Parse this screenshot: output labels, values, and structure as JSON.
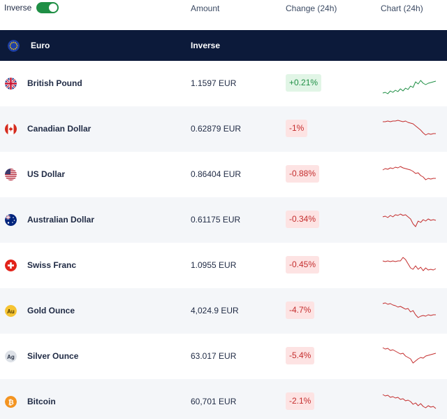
{
  "topbar": {
    "inverse_label": "Inverse",
    "toggle_on": true,
    "col_amount": "Amount",
    "col_change": "Change (24h)",
    "col_chart": "Chart (24h)"
  },
  "base": {
    "name": "Euro",
    "inverse_label": "Inverse",
    "icon": "eu-flag-icon"
  },
  "colors": {
    "header_bg": "#0c1a3a",
    "toggle": "#1f8f45",
    "positive": "#1f8f45",
    "negative": "#c42d2d"
  },
  "rows": [
    {
      "name": "British Pound",
      "amount": "1.1597 EUR",
      "change": "+0.21%",
      "trend": "up",
      "icon": "uk-flag-icon",
      "spark": [
        30,
        29,
        31,
        27,
        29,
        26,
        28,
        24,
        27,
        23,
        25,
        20,
        22,
        14,
        17,
        12,
        16,
        18,
        16,
        15,
        14,
        13
      ]
    },
    {
      "name": "Canadian Dollar",
      "amount": "0.62879 EUR",
      "change": "-1%",
      "trend": "down",
      "icon": "canada-flag-icon",
      "spark": [
        6,
        6,
        5,
        6,
        5,
        5,
        4,
        5,
        6,
        5,
        7,
        8,
        9,
        12,
        15,
        18,
        22,
        25,
        23,
        24,
        23,
        23
      ]
    },
    {
      "name": "US Dollar",
      "amount": "0.86404 EUR",
      "change": "-0.88%",
      "trend": "down",
      "icon": "us-flag-icon",
      "spark": [
        10,
        8,
        9,
        7,
        8,
        6,
        7,
        5,
        7,
        8,
        9,
        10,
        12,
        15,
        14,
        18,
        20,
        24,
        22,
        23,
        22,
        22
      ]
    },
    {
      "name": "Australian Dollar",
      "amount": "0.61175 EUR",
      "change": "-0.34%",
      "trend": "down",
      "icon": "australia-flag-icon",
      "spark": [
        12,
        11,
        13,
        10,
        12,
        9,
        10,
        8,
        10,
        9,
        12,
        15,
        22,
        26,
        18,
        20,
        16,
        18,
        15,
        17,
        16,
        17
      ]
    },
    {
      "name": "Swiss Franc",
      "amount": "1.0955 EUR",
      "change": "-0.45%",
      "trend": "down",
      "icon": "swiss-flag-icon",
      "spark": [
        10,
        11,
        10,
        11,
        10,
        11,
        10,
        10,
        5,
        8,
        14,
        20,
        22,
        17,
        22,
        19,
        24,
        20,
        23,
        22,
        23,
        21
      ]
    },
    {
      "name": "Gold Ounce",
      "amount": "4,024.9 EUR",
      "change": "-4.7%",
      "trend": "down",
      "icon": "gold-au-icon",
      "spark": [
        6,
        5,
        7,
        6,
        8,
        9,
        11,
        10,
        12,
        14,
        13,
        18,
        16,
        22,
        26,
        24,
        23,
        24,
        22,
        23,
        22,
        22
      ]
    },
    {
      "name": "Silver Ounce",
      "amount": "63.017 EUR",
      "change": "-5.4%",
      "trend": "down",
      "icon": "silver-ag-icon",
      "spark": [
        4,
        6,
        5,
        8,
        7,
        9,
        11,
        13,
        12,
        16,
        18,
        20,
        26,
        23,
        20,
        18,
        19,
        16,
        15,
        14,
        13,
        12
      ]
    },
    {
      "name": "Bitcoin",
      "amount": "60,701 EUR",
      "change": "-2.1%",
      "trend": "down",
      "icon": "bitcoin-icon",
      "spark": [
        6,
        8,
        7,
        10,
        9,
        11,
        10,
        13,
        12,
        15,
        14,
        16,
        20,
        18,
        22,
        19,
        23,
        25,
        22,
        24,
        23,
        26
      ]
    }
  ]
}
